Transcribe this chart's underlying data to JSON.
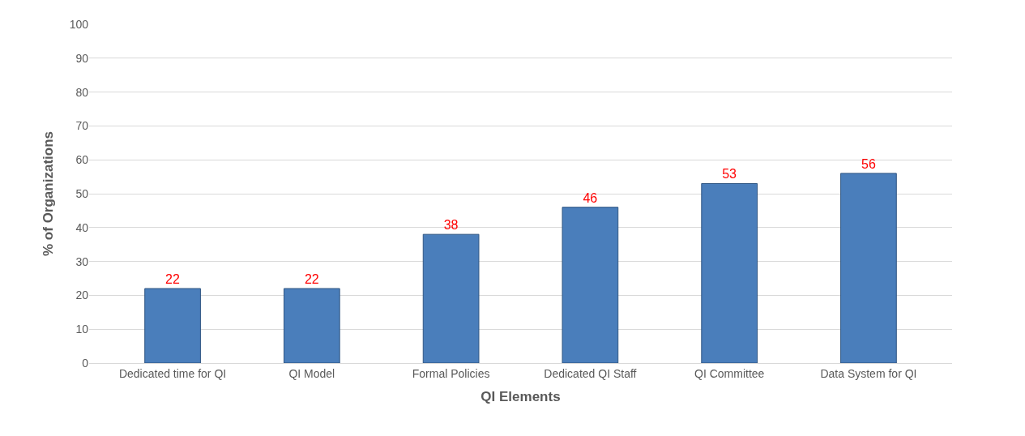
{
  "chart_data": {
    "type": "bar",
    "xlabel": "QI Elements",
    "ylabel": "% of Organizations",
    "categories": [
      "Dedicated time for QI",
      "QI Model",
      "Formal Policies",
      "Dedicated QI Staff",
      "QI Committee",
      "Data System for QI"
    ],
    "values": [
      22,
      22,
      38,
      46,
      53,
      56
    ],
    "color": "#4a7ebb",
    "ylim": [
      0,
      100
    ],
    "yticks": [
      0,
      10,
      20,
      30,
      40,
      50,
      60,
      70,
      80,
      90,
      100
    ],
    "grid": "y",
    "data_labels": true
  }
}
